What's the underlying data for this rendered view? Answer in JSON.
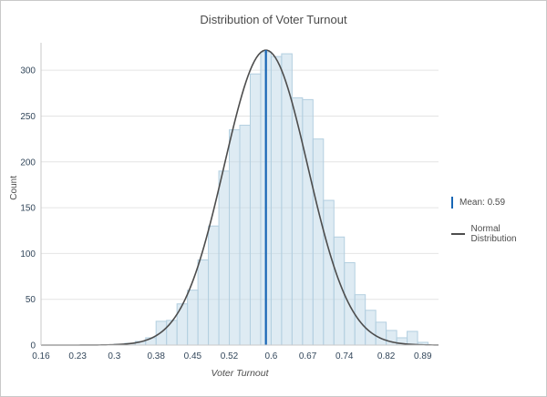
{
  "chart_data": {
    "type": "bar",
    "subtype": "histogram-with-normal-curve",
    "title": "Distribution of Voter Turnout",
    "xlabel": "Voter Turnout",
    "ylabel": "Count",
    "xlim": [
      0.16,
      0.92
    ],
    "ylim": [
      0,
      330
    ],
    "xticks": [
      0.16,
      0.23,
      0.3,
      0.38,
      0.45,
      0.52,
      0.6,
      0.67,
      0.74,
      0.82,
      0.89
    ],
    "yticks": [
      0,
      50,
      100,
      150,
      200,
      250,
      300
    ],
    "grid": "horizontal",
    "bin_start": 0.3,
    "bin_width": 0.02,
    "counts": [
      1,
      2,
      4,
      8,
      26,
      27,
      45,
      60,
      93,
      130,
      190,
      235,
      240,
      296,
      320,
      315,
      318,
      270,
      268,
      225,
      158,
      118,
      90,
      55,
      38,
      25,
      16,
      8,
      15,
      3
    ],
    "mean": 0.59,
    "normal_curve": {
      "mean": 0.59,
      "sd": 0.08,
      "peak": 322
    },
    "legend_position": "right",
    "legend": [
      {
        "label": "Mean: 0.59",
        "swatch": "vertical-line"
      },
      {
        "label": "Normal Distribution",
        "swatch": "horizontal-line"
      }
    ],
    "colors": {
      "bar_fill": "rgba(189,215,231,0.50)",
      "bar_stroke": "#b3cfe0",
      "mean_line": "#1766b5",
      "curve": "#4d4d4d",
      "grid": "#e4e4e4",
      "axis": "#c9c9c9",
      "tick_label": "#33475b",
      "title": "#4a4a4a"
    }
  }
}
